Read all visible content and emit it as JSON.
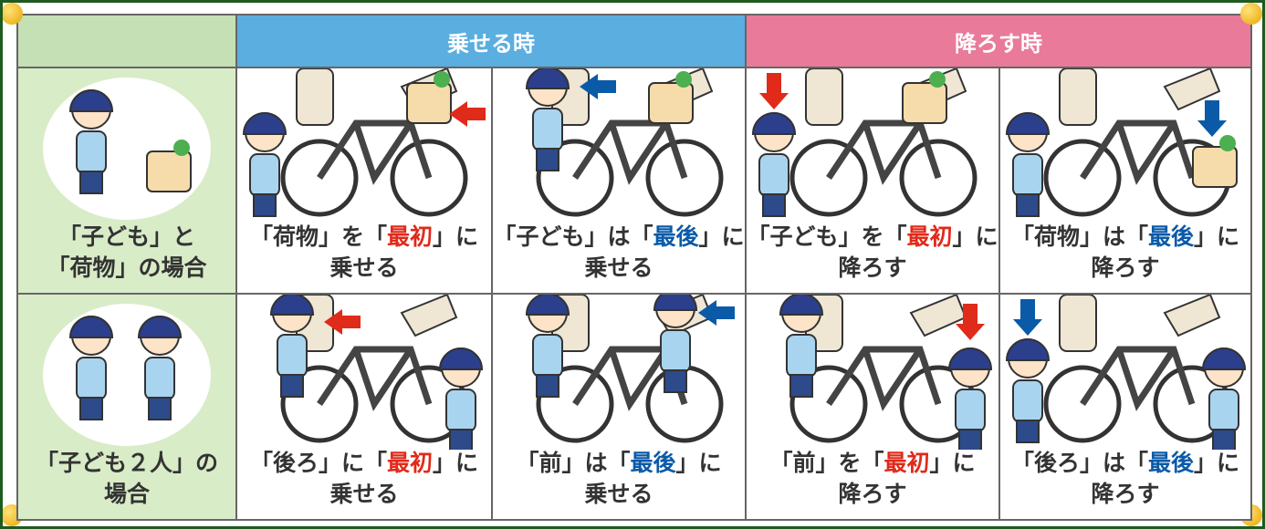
{
  "header": {
    "load": "乗せる時",
    "unload": "降ろす時"
  },
  "rows": [
    {
      "label": [
        "「子ども」と",
        "「荷物」の場合"
      ],
      "cells": [
        {
          "before": "「荷物」を「",
          "emphasis": "最初",
          "after": "」に",
          "line2": "乗せる",
          "color": "#e02a1a"
        },
        {
          "before": "「子ども」は「",
          "emphasis": "最後",
          "after": "」に",
          "line2": "乗せる",
          "color": "#0a5aa8"
        },
        {
          "before": "「子ども」を「",
          "emphasis": "最初",
          "after": "」に",
          "line2": "降ろす",
          "color": "#e02a1a"
        },
        {
          "before": "「荷物」は「",
          "emphasis": "最後",
          "after": "」に",
          "line2": "降ろす",
          "color": "#0a5aa8"
        }
      ]
    },
    {
      "label": [
        "「子ども２人」の",
        "場合"
      ],
      "cells": [
        {
          "before": "「後ろ」に「",
          "emphasis": "最初",
          "after": "」に",
          "line2": "乗せる",
          "color": "#e02a1a"
        },
        {
          "before": "「前」は「",
          "emphasis": "最後",
          "after": "」に",
          "line2": "乗せる",
          "color": "#0a5aa8"
        },
        {
          "before": "「前」を「",
          "emphasis": "最初",
          "after": "」に",
          "line2": "降ろす",
          "color": "#e02a1a"
        },
        {
          "before": "「後ろ」は「",
          "emphasis": "最後",
          "after": "」に",
          "line2": "降ろす",
          "color": "#0a5aa8"
        }
      ]
    }
  ]
}
